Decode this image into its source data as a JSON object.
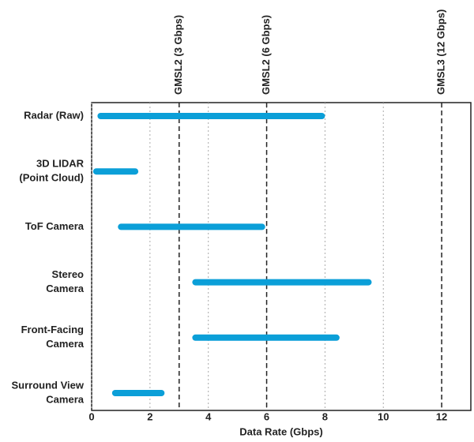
{
  "chart_data": {
    "type": "range-bar",
    "x_label": "Data Rate (Gbps)",
    "categories": [
      [
        "Radar (Raw)"
      ],
      [
        "3D LIDAR",
        "(Point Cloud)"
      ],
      [
        "ToF Camera"
      ],
      [
        "Stereo",
        "Camera"
      ],
      [
        "Front-Facing",
        "Camera"
      ],
      [
        "Surround View",
        "Camera"
      ]
    ],
    "starts": [
      0.2,
      0.05,
      0.9,
      3.45,
      3.45,
      0.7
    ],
    "ends": [
      8.0,
      1.6,
      5.95,
      9.6,
      8.5,
      2.5
    ],
    "color": "#0b9fd8",
    "xlim": [
      0,
      13
    ],
    "xticks": [
      0,
      2,
      4,
      6,
      8,
      10,
      12
    ],
    "grid": true,
    "reference_lines": [
      {
        "value": 3,
        "label": "GMSL2 (3 Gbps)"
      },
      {
        "value": 6,
        "label": "GMSL2 (6 Gbps)"
      },
      {
        "value": 12,
        "label": "GMSL3 (12 Gbps)"
      }
    ]
  }
}
